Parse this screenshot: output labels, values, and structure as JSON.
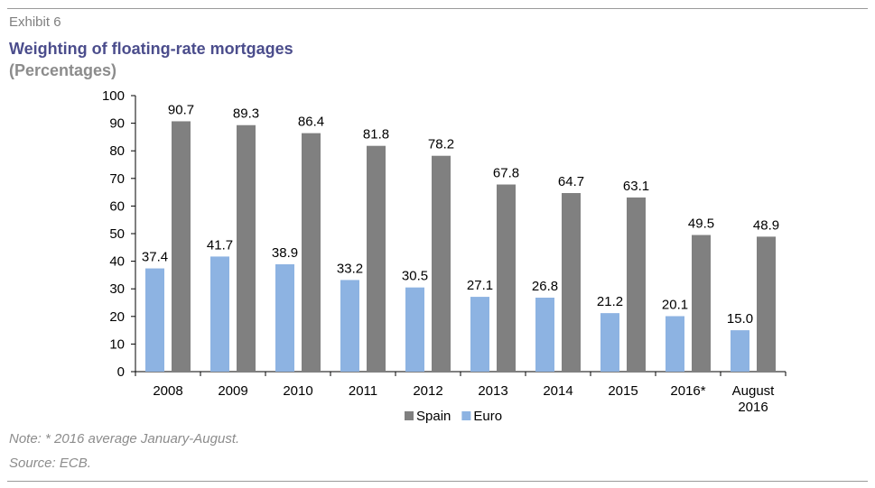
{
  "exhibit_label": "Exhibit 6",
  "note": "Note: * 2016 average January-August.",
  "source": "Source: ECB.",
  "colors": {
    "spain": "#808080",
    "euro": "#8db3e2",
    "title": "#4b4d8c"
  },
  "chart_data": {
    "type": "bar",
    "title": "Weighting of floating-rate mortgages",
    "subtitle": "(Percentages)",
    "categories": [
      [
        "2008"
      ],
      [
        "2009"
      ],
      [
        "2010"
      ],
      [
        "2011"
      ],
      [
        "2012"
      ],
      [
        "2013"
      ],
      [
        "2014"
      ],
      [
        "2015"
      ],
      [
        "2016*"
      ],
      [
        "August",
        "2016"
      ]
    ],
    "series": [
      {
        "name": "Euro",
        "values": [
          37.4,
          41.7,
          38.9,
          33.2,
          30.5,
          27.1,
          26.8,
          21.2,
          20.1,
          15.0
        ]
      },
      {
        "name": "Spain",
        "values": [
          90.7,
          89.3,
          86.4,
          81.8,
          78.2,
          67.8,
          64.7,
          63.1,
          49.5,
          48.9
        ]
      }
    ],
    "ylim": [
      0,
      100
    ],
    "yticks": [
      0,
      10,
      20,
      30,
      40,
      50,
      60,
      70,
      80,
      90,
      100
    ],
    "legend": {
      "placement": "bottom",
      "order": [
        "Spain",
        "Euro"
      ]
    },
    "grid": false
  }
}
